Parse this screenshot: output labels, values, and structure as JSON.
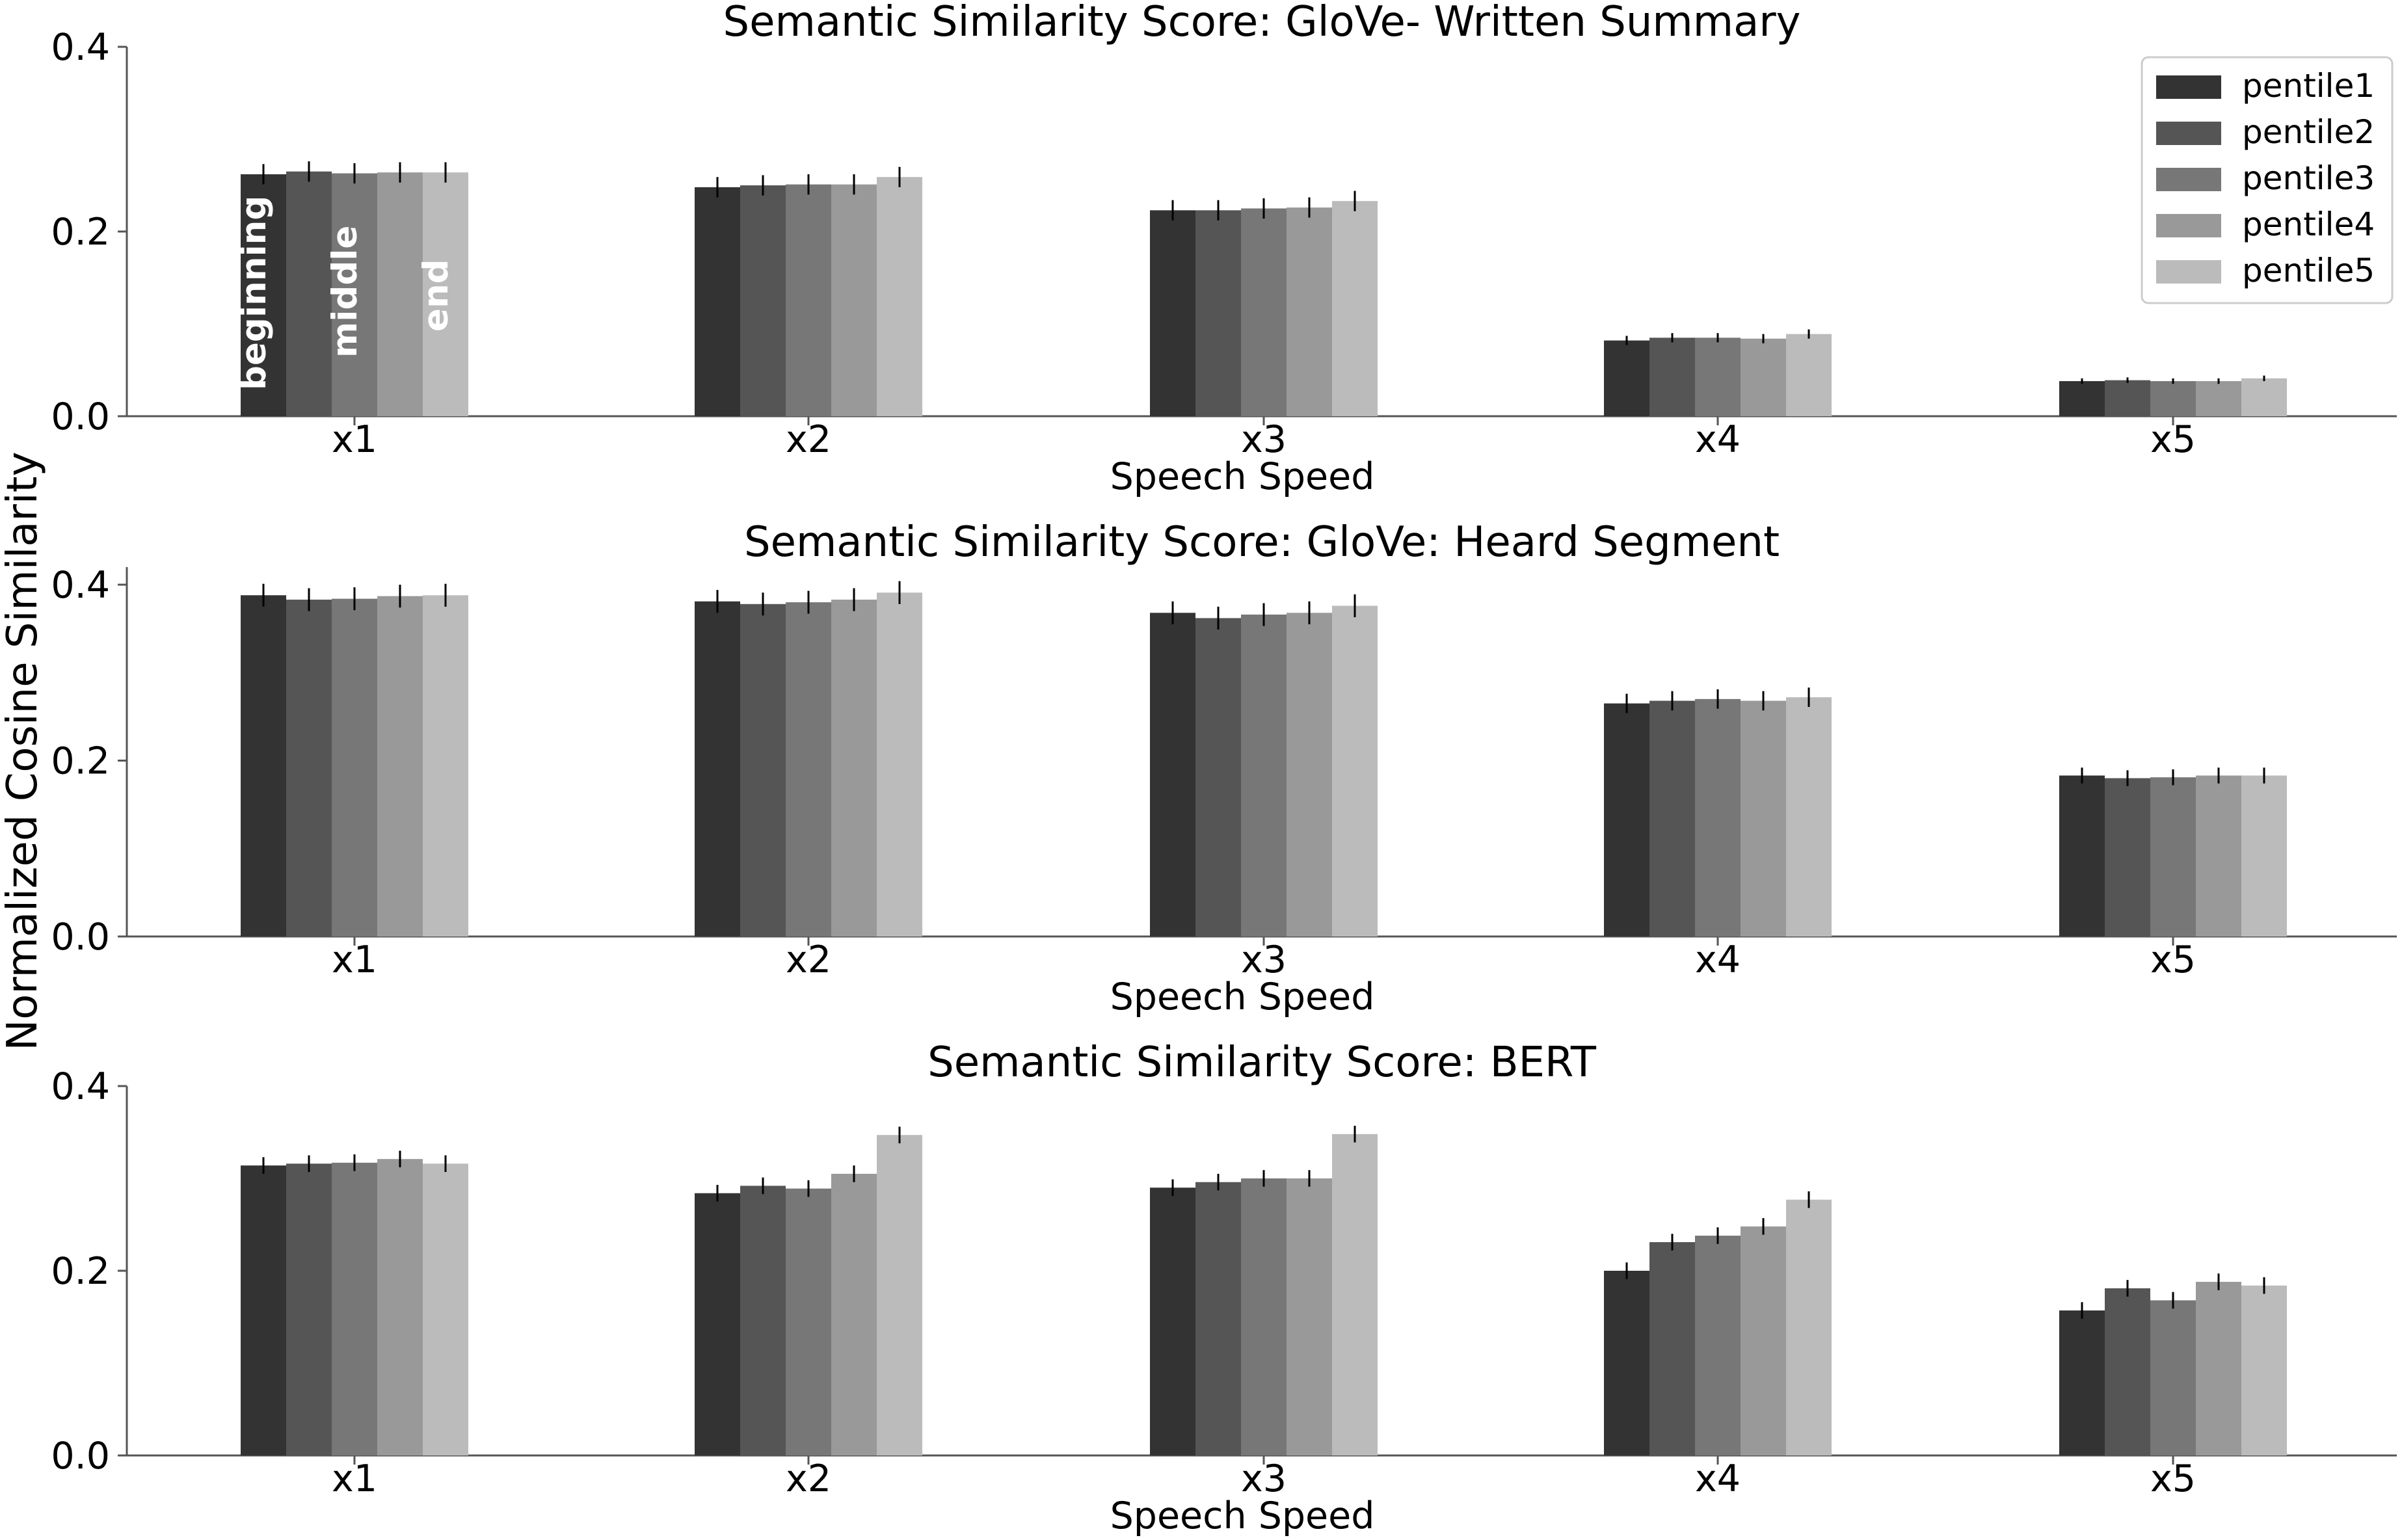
{
  "figure": {
    "ylabel": "Normalized Cosine Similarity"
  },
  "colors": {
    "pentile1": "#333333",
    "pentile2": "#555555",
    "pentile3": "#777777",
    "pentile4": "#999999",
    "pentile5": "#bbbbbb",
    "axis": "#555555",
    "errorbar": "#000000"
  },
  "legend": {
    "placement": "top-right",
    "entries": [
      "pentile1",
      "pentile2",
      "pentile3",
      "pentile4",
      "pentile5"
    ]
  },
  "annotations": [
    "beginning",
    "middle",
    "end"
  ],
  "chart_data": [
    {
      "type": "bar",
      "title": "Semantic Similarity Score: GloVe- Written Summary",
      "xlabel": "Speech Speed",
      "ylabel": "",
      "categories": [
        "x1",
        "x2",
        "x3",
        "x4",
        "x5"
      ],
      "ylim": [
        0,
        0.4
      ],
      "yticks": [
        "0.0",
        "0.2",
        "0.4"
      ],
      "series": [
        {
          "name": "pentile1",
          "values": [
            0.262,
            0.248,
            0.223,
            0.082,
            0.038
          ],
          "errors": [
            0.011,
            0.011,
            0.011,
            0.005,
            0.003
          ]
        },
        {
          "name": "pentile2",
          "values": [
            0.265,
            0.25,
            0.223,
            0.085,
            0.039
          ],
          "errors": [
            0.011,
            0.011,
            0.011,
            0.005,
            0.003
          ]
        },
        {
          "name": "pentile3",
          "values": [
            0.263,
            0.251,
            0.225,
            0.085,
            0.038
          ],
          "errors": [
            0.011,
            0.011,
            0.011,
            0.005,
            0.003
          ]
        },
        {
          "name": "pentile4",
          "values": [
            0.264,
            0.251,
            0.226,
            0.084,
            0.038
          ],
          "errors": [
            0.011,
            0.011,
            0.011,
            0.005,
            0.003
          ]
        },
        {
          "name": "pentile5",
          "values": [
            0.264,
            0.259,
            0.233,
            0.089,
            0.041
          ],
          "errors": [
            0.011,
            0.011,
            0.011,
            0.005,
            0.003
          ]
        }
      ]
    },
    {
      "type": "bar",
      "title": "Semantic Similarity Score: GloVe: Heard Segment",
      "xlabel": "Speech Speed",
      "ylabel": "",
      "categories": [
        "x1",
        "x2",
        "x3",
        "x4",
        "x5"
      ],
      "ylim": [
        0,
        0.42
      ],
      "yticks": [
        "0.0",
        "0.2",
        "0.4"
      ],
      "series": [
        {
          "name": "pentile1",
          "values": [
            0.388,
            0.381,
            0.368,
            0.265,
            0.183
          ],
          "errors": [
            0.013,
            0.013,
            0.013,
            0.011,
            0.009
          ]
        },
        {
          "name": "pentile2",
          "values": [
            0.383,
            0.378,
            0.362,
            0.268,
            0.18
          ],
          "errors": [
            0.013,
            0.013,
            0.013,
            0.011,
            0.009
          ]
        },
        {
          "name": "pentile3",
          "values": [
            0.384,
            0.38,
            0.366,
            0.27,
            0.181
          ],
          "errors": [
            0.013,
            0.013,
            0.013,
            0.011,
            0.009
          ]
        },
        {
          "name": "pentile4",
          "values": [
            0.387,
            0.383,
            0.368,
            0.268,
            0.183
          ],
          "errors": [
            0.013,
            0.013,
            0.013,
            0.011,
            0.009
          ]
        },
        {
          "name": "pentile5",
          "values": [
            0.388,
            0.391,
            0.376,
            0.272,
            0.183
          ],
          "errors": [
            0.013,
            0.013,
            0.013,
            0.011,
            0.009
          ]
        }
      ]
    },
    {
      "type": "bar",
      "title": "Semantic Similarity Score: BERT",
      "xlabel": "Speech Speed",
      "ylabel": "",
      "categories": [
        "x1",
        "x2",
        "x3",
        "x4",
        "x5"
      ],
      "ylim": [
        0,
        0.4
      ],
      "yticks": [
        "0.0",
        "0.2",
        "0.4"
      ],
      "series": [
        {
          "name": "pentile1",
          "values": [
            0.314,
            0.284,
            0.29,
            0.2,
            0.157
          ],
          "errors": [
            0.009,
            0.009,
            0.009,
            0.009,
            0.009
          ]
        },
        {
          "name": "pentile2",
          "values": [
            0.316,
            0.292,
            0.296,
            0.231,
            0.181
          ],
          "errors": [
            0.009,
            0.009,
            0.009,
            0.009,
            0.009
          ]
        },
        {
          "name": "pentile3",
          "values": [
            0.317,
            0.289,
            0.3,
            0.238,
            0.168
          ],
          "errors": [
            0.009,
            0.009,
            0.009,
            0.009,
            0.009
          ]
        },
        {
          "name": "pentile4",
          "values": [
            0.321,
            0.305,
            0.3,
            0.248,
            0.188
          ],
          "errors": [
            0.009,
            0.009,
            0.009,
            0.009,
            0.009
          ]
        },
        {
          "name": "pentile5",
          "values": [
            0.316,
            0.347,
            0.348,
            0.277,
            0.184
          ],
          "errors": [
            0.009,
            0.009,
            0.009,
            0.009,
            0.009
          ]
        }
      ]
    }
  ]
}
